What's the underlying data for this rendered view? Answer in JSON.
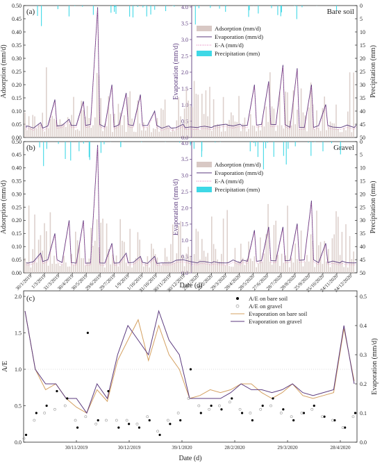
{
  "figure": {
    "xlabel": "Date (d)"
  },
  "colors": {
    "evaporation": "#5b3a7e",
    "adsorption": "#d8c8c4",
    "precipitation": "#3fd8e6",
    "ea": "#e06bb0",
    "evap_bare_c": "#d4a060",
    "ae_bare": "#000000",
    "ae_gravel": "#999999"
  },
  "chart_data": [
    {
      "panel": "(a)",
      "type": "line",
      "title": "Bare soil",
      "ylabel": "Adsorption (mm/d)",
      "y2label": "Evaporation (mm/d)",
      "y3label": "Precipitation (mm)",
      "ylim": [
        0,
        0.5
      ],
      "y2lim": [
        0,
        4.0
      ],
      "y3lim": [
        50,
        0
      ],
      "yticks": [
        "0.00",
        "0.05",
        "0.10",
        "0.15",
        "0.20",
        "0.25",
        "0.30",
        "0.35",
        "0.40",
        "0.45",
        "0.50"
      ],
      "y2ticks": [
        "0.0",
        "0.5",
        "1.0",
        "1.5",
        "2.0",
        "2.5",
        "3.0",
        "3.5",
        "4.0"
      ],
      "y3ticks": [
        "0",
        "5",
        "10",
        "15",
        "20",
        "25",
        "30",
        "35",
        "40",
        "45",
        "50"
      ],
      "legend": [
        "Adsorption (mm/d)",
        "Evaporation (mm/d)",
        "E-A (mm/d)",
        "Precipitation (mm)"
      ],
      "evaporation_peaks": [
        {
          "x": "30/1/2019",
          "y": 0.35
        },
        {
          "x": "1/3/2019",
          "y": 0.45
        },
        {
          "x": "31/3/2019",
          "y": 1.15
        },
        {
          "x": "30/4/2019",
          "y": 0.55
        },
        {
          "x": "30/5/2019",
          "y": 1.1
        },
        {
          "x": "20/6/2019",
          "y": 3.95
        },
        {
          "x": "29/7/2019",
          "y": 1.6
        },
        {
          "x": "28/8/2019",
          "y": 1.35
        },
        {
          "x": "1/10/2019",
          "y": 1.3
        },
        {
          "x": "31/10/2019",
          "y": 0.8
        },
        {
          "x": "30/11/2019",
          "y": 0.35
        },
        {
          "x": "30/12/2019",
          "y": 0.4
        },
        {
          "x": "29/1/2020",
          "y": 0.3
        },
        {
          "x": "28/2/2020",
          "y": 0.3
        },
        {
          "x": "29/3/2020",
          "y": 0.4
        },
        {
          "x": "28/4/2020",
          "y": 0.4
        },
        {
          "x": "28/5/2020",
          "y": 1.6
        },
        {
          "x": "27/6/2020",
          "y": 1.7
        },
        {
          "x": "28/7/2020",
          "y": 2.2
        },
        {
          "x": "28/8/2020",
          "y": 2.1
        },
        {
          "x": "25/9/2020",
          "y": 1.6
        },
        {
          "x": "25/10/2020",
          "y": 1.0
        },
        {
          "x": "24/11/2020",
          "y": 0.3
        },
        {
          "x": "24/12/2020",
          "y": 0.3
        }
      ]
    },
    {
      "panel": "(b)",
      "type": "line",
      "title": "Gravel",
      "ylabel": "Adsorption (mm/d)",
      "y2label": "Evaporation (mm/d)",
      "y3label": "Precipitation (mm)",
      "ylim": [
        0,
        0.5
      ],
      "y2lim": [
        0,
        4.0
      ],
      "y3lim": [
        50,
        0
      ],
      "yticks": [
        "0.00",
        "0.05",
        "0.10",
        "0.15",
        "0.20",
        "0.25",
        "0.30",
        "0.35",
        "0.40",
        "0.45",
        "0.50"
      ],
      "y2ticks": [
        "0.0",
        "0.5",
        "1.0",
        "1.5",
        "2.0",
        "2.5",
        "3.0",
        "3.5",
        "4.0"
      ],
      "y3ticks": [
        "0",
        "5",
        "10",
        "15",
        "20",
        "25",
        "30",
        "35",
        "40",
        "45",
        "50"
      ],
      "xticks": [
        "30/1/2019",
        "1/3/2019",
        "31/3/2019",
        "30/4/2019",
        "30/5/2019",
        "29/6/2019",
        "29/7/2019",
        "1/9/2019",
        "1/10/2019",
        "31/10/2019",
        "30/11/2019",
        "30/12/2019",
        "29/1/2020",
        "28/2/2020",
        "29/3/2020",
        "28/4/2020",
        "28/5/2020",
        "27/6/2020",
        "28/7/2020",
        "28/8/2020",
        "25/9/2020",
        "25/10/2020",
        "24/11/2020",
        "24/12/2020"
      ],
      "legend": [
        "Adsorption (mm/d)",
        "Evaporation (mm/d)",
        "E-A (mm/d)",
        "Precipitation (mm)"
      ],
      "evaporation_peaks": [
        {
          "x": "30/1/2019",
          "y": 0.3
        },
        {
          "x": "1/3/2019",
          "y": 0.6
        },
        {
          "x": "31/3/2019",
          "y": 1.2
        },
        {
          "x": "30/4/2019",
          "y": 1.6
        },
        {
          "x": "30/5/2019",
          "y": 1.6
        },
        {
          "x": "20/6/2019",
          "y": 3.9
        },
        {
          "x": "29/7/2019",
          "y": 0.9
        },
        {
          "x": "1/9/2019",
          "y": 0.6
        },
        {
          "x": "1/10/2019",
          "y": 0.5
        },
        {
          "x": "31/10/2019",
          "y": 0.5
        },
        {
          "x": "30/11/2019",
          "y": 0.3
        },
        {
          "x": "30/12/2019",
          "y": 0.4
        },
        {
          "x": "29/1/2020",
          "y": 0.3
        },
        {
          "x": "28/2/2020",
          "y": 0.3
        },
        {
          "x": "29/3/2020",
          "y": 0.3
        },
        {
          "x": "28/4/2020",
          "y": 0.3
        },
        {
          "x": "28/5/2020",
          "y": 1.3
        },
        {
          "x": "27/6/2020",
          "y": 1.4
        },
        {
          "x": "28/7/2020",
          "y": 1.4
        },
        {
          "x": "28/8/2020",
          "y": 1.5
        },
        {
          "x": "25/9/2020",
          "y": 2.2
        },
        {
          "x": "25/10/2020",
          "y": 0.9
        },
        {
          "x": "24/11/2020",
          "y": 0.3
        },
        {
          "x": "24/12/2020",
          "y": 0.3
        }
      ]
    },
    {
      "panel": "(c)",
      "type": "scatter",
      "ylabel": "A/E",
      "y2label": "Evaporation (mm/d)",
      "ylim": [
        0,
        2.0
      ],
      "y2lim": [
        0,
        0.5
      ],
      "yticks": [
        "0.0",
        "0.5",
        "1.0",
        "1.5",
        "2.0"
      ],
      "y2ticks": [
        "0.0",
        "0.1",
        "0.2",
        "0.3",
        "0.4",
        "0.5"
      ],
      "xticks": [
        "30/11/2019",
        "30/12/2019",
        "39/1/2020",
        "28/2/2020",
        "29/3/2020",
        "28/4/2020"
      ],
      "legend": [
        "A/E on bare soil",
        "A/E on gravel",
        "Evaporation on bare soil",
        "Evaporation on gravel"
      ],
      "evaporation_on_gravel": [
        0.45,
        0.25,
        0.2,
        0.2,
        0.15,
        0.15,
        0.1,
        0.2,
        0.15,
        0.3,
        0.4,
        0.35,
        0.3,
        0.45,
        0.35,
        0.3,
        0.15,
        0.15,
        0.15,
        0.15,
        0.17,
        0.2,
        0.18,
        0.18,
        0.17,
        0.18,
        0.2,
        0.17,
        0.16,
        0.17,
        0.18,
        0.4,
        0.2
      ],
      "evaporation_on_bare_soil": [
        0.45,
        0.25,
        0.18,
        0.2,
        0.15,
        0.12,
        0.1,
        0.18,
        0.14,
        0.28,
        0.35,
        0.42,
        0.28,
        0.4,
        0.3,
        0.25,
        0.15,
        0.16,
        0.18,
        0.17,
        0.18,
        0.2,
        0.2,
        0.17,
        0.15,
        0.17,
        0.2,
        0.16,
        0.15,
        0.16,
        0.17,
        0.39,
        0.21
      ],
      "ae_bare_soil": [
        0.1,
        0.4,
        0.5,
        0.7,
        0.6,
        0.2,
        1.5,
        0.3,
        0.7,
        0.2,
        0.25,
        0.2,
        0.3,
        0.1,
        0.25,
        0.3,
        1.0,
        0.4,
        0.5,
        0.45,
        0.6,
        0.4,
        0.3,
        0.5,
        0.6,
        0.45,
        0.3,
        0.4,
        0.5,
        0.35,
        0.3,
        0.2,
        0.4
      ],
      "ae_gravel": [
        0.05,
        0.3,
        0.4,
        0.45,
        0.5,
        0.3,
        0.35,
        0.25,
        0.3,
        0.3,
        0.3,
        0.25,
        0.35,
        0.15,
        0.3,
        0.4,
        0.6,
        0.5,
        0.45,
        0.5,
        0.55,
        0.45,
        0.4,
        0.45,
        0.5,
        0.4,
        0.35,
        0.4,
        0.45,
        0.35,
        0.3,
        0.2,
        0.35
      ]
    }
  ]
}
